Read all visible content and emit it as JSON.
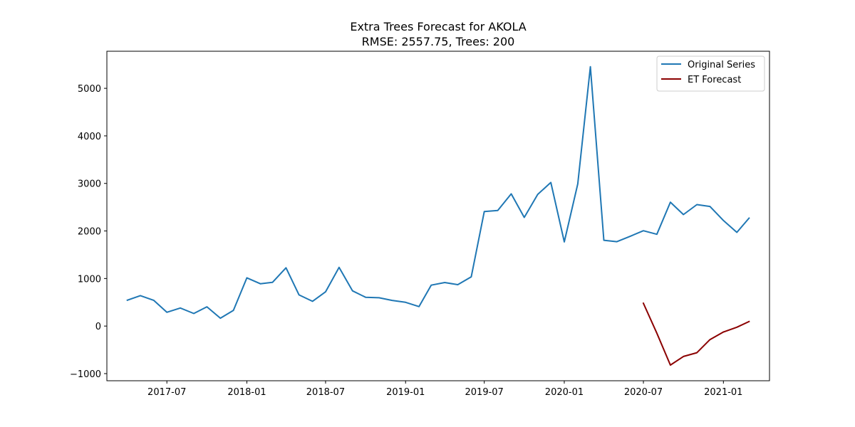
{
  "chart_data": {
    "type": "line",
    "title": "Extra Trees Forecast for AKOLA",
    "subtitle": "RMSE: 2557.75, Trees: 200",
    "xlabel": "",
    "ylabel": "",
    "x_tick_labels": [
      "2017-07",
      "2018-01",
      "2018-07",
      "2019-01",
      "2019-07",
      "2020-01",
      "2020-07",
      "2021-01"
    ],
    "x_tick_dates": [
      "2017-07-01",
      "2018-01-01",
      "2018-07-01",
      "2019-01-01",
      "2019-07-01",
      "2020-01-01",
      "2020-07-01",
      "2021-01-01"
    ],
    "y_ticks": [
      -1000,
      0,
      1000,
      2000,
      3000,
      4000,
      5000
    ],
    "y_tick_labels": [
      "−1000",
      "0",
      "1000",
      "2000",
      "3000",
      "4000",
      "5000"
    ],
    "xlim": [
      "2017-02-13",
      "2021-04-17"
    ],
    "ylim": [
      -1150,
      5780
    ],
    "grid": false,
    "legend_position": "top-right",
    "series": [
      {
        "name": "Original Series",
        "color": "#1f77b4",
        "x": [
          "2017-04-01",
          "2017-05-01",
          "2017-06-01",
          "2017-07-01",
          "2017-08-01",
          "2017-09-01",
          "2017-10-01",
          "2017-11-01",
          "2017-12-01",
          "2018-01-01",
          "2018-02-01",
          "2018-03-01",
          "2018-04-01",
          "2018-05-01",
          "2018-06-01",
          "2018-07-01",
          "2018-08-01",
          "2018-09-01",
          "2018-10-01",
          "2018-11-01",
          "2018-12-01",
          "2019-01-01",
          "2019-02-01",
          "2019-03-01",
          "2019-04-01",
          "2019-05-01",
          "2019-06-01",
          "2019-07-01",
          "2019-08-01",
          "2019-09-01",
          "2019-10-01",
          "2019-11-01",
          "2019-12-01",
          "2020-01-01",
          "2020-02-01",
          "2020-03-01",
          "2020-04-01",
          "2020-05-01",
          "2020-06-01",
          "2020-07-01",
          "2020-08-01",
          "2020-09-01",
          "2020-10-01",
          "2020-11-01",
          "2020-12-01",
          "2021-01-01",
          "2021-02-01",
          "2021-03-01"
        ],
        "values": [
          545,
          640,
          540,
          290,
          380,
          265,
          405,
          165,
          330,
          1015,
          890,
          920,
          1225,
          655,
          520,
          720,
          1235,
          740,
          605,
          595,
          540,
          500,
          410,
          860,
          915,
          870,
          1035,
          2410,
          2430,
          2780,
          2285,
          2770,
          3020,
          1770,
          2990,
          5455,
          1805,
          1775,
          1890,
          2005,
          1930,
          2605,
          2345,
          2555,
          2515,
          2220,
          1970,
          2270
        ]
      },
      {
        "name": "ET Forecast",
        "color": "#8b0000",
        "x": [
          "2020-07-01",
          "2020-08-01",
          "2020-09-01",
          "2020-10-01",
          "2020-11-01",
          "2020-12-01",
          "2021-01-01",
          "2021-02-01",
          "2021-03-01"
        ],
        "values": [
          480,
          -150,
          -820,
          -640,
          -560,
          -285,
          -125,
          -25,
          95
        ]
      }
    ]
  }
}
